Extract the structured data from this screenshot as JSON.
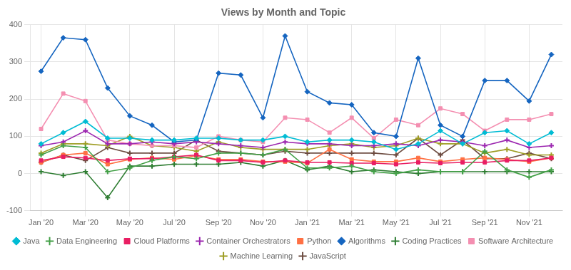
{
  "chart_data": {
    "type": "line",
    "title": "Views by Month and Topic",
    "categories": [
      "Jan '20",
      null,
      "Mar '20",
      null,
      "May '20",
      null,
      "Jul '20",
      null,
      "Sep '20",
      null,
      "Nov '20",
      null,
      "Jan '21",
      null,
      "Mar '21",
      null,
      "May '21",
      null,
      "Jul '21",
      null,
      "Sep '21",
      null,
      "Nov '21",
      null
    ],
    "ylim": [
      -100,
      400
    ],
    "yticks": [
      -100,
      0,
      100,
      200,
      300,
      400
    ],
    "grid": true,
    "legend": "bottom",
    "series": [
      {
        "name": "Java",
        "color": "#00bcd4",
        "marker": "diamond",
        "values": [
          80,
          110,
          140,
          95,
          95,
          90,
          90,
          95,
          95,
          90,
          90,
          100,
          85,
          90,
          90,
          85,
          65,
          80,
          115,
          80,
          110,
          115,
          80,
          110
        ]
      },
      {
        "name": "Data Engineering",
        "color": "#43a047",
        "marker": "plus",
        "values": [
          50,
          75,
          70,
          5,
          15,
          35,
          45,
          40,
          55,
          55,
          50,
          65,
          15,
          15,
          20,
          5,
          0,
          10,
          5,
          5,
          60,
          10,
          -10,
          10
        ]
      },
      {
        "name": "Cloud Platforms",
        "color": "#e91e63",
        "marker": "square",
        "values": [
          35,
          45,
          42,
          35,
          40,
          40,
          45,
          50,
          35,
          35,
          30,
          35,
          30,
          30,
          28,
          28,
          25,
          30,
          28,
          30,
          30,
          35,
          35,
          42
        ]
      },
      {
        "name": "Container Orchestrators",
        "color": "#9c27b0",
        "marker": "plus",
        "values": [
          75,
          85,
          115,
          80,
          80,
          85,
          80,
          85,
          80,
          75,
          70,
          85,
          80,
          80,
          75,
          75,
          80,
          75,
          90,
          85,
          75,
          90,
          70,
          75
        ]
      },
      {
        "name": "Python",
        "color": "#ff7043",
        "marker": "square",
        "values": [
          30,
          50,
          55,
          25,
          38,
          42,
          38,
          48,
          38,
          38,
          32,
          32,
          28,
          65,
          38,
          32,
          32,
          42,
          32,
          38,
          42,
          38,
          32,
          42
        ]
      },
      {
        "name": "Algorithms",
        "color": "#1565c0",
        "marker": "diamond",
        "values": [
          275,
          365,
          360,
          230,
          155,
          130,
          85,
          90,
          270,
          265,
          150,
          370,
          220,
          190,
          185,
          110,
          100,
          310,
          130,
          100,
          250,
          250,
          195,
          320
        ]
      },
      {
        "name": "Coding Practices",
        "color": "#2e7d32",
        "marker": "plus",
        "values": [
          5,
          -5,
          5,
          -65,
          20,
          20,
          25,
          25,
          25,
          30,
          20,
          35,
          10,
          20,
          5,
          10,
          5,
          0,
          5,
          5,
          5,
          5,
          5,
          5
        ]
      },
      {
        "name": "Software Architecture",
        "color": "#f48fb1",
        "marker": "square",
        "values": [
          120,
          215,
          195,
          90,
          80,
          75,
          75,
          70,
          100,
          90,
          85,
          150,
          145,
          110,
          150,
          95,
          145,
          130,
          175,
          160,
          115,
          145,
          145,
          160
        ]
      },
      {
        "name": "Machine Learning",
        "color": "#9e9d24",
        "marker": "plus",
        "values": [
          55,
          80,
          80,
          75,
          100,
          75,
          70,
          60,
          85,
          70,
          65,
          65,
          65,
          75,
          80,
          70,
          75,
          95,
          80,
          80,
          55,
          65,
          50,
          50
        ]
      },
      {
        "name": "JavaScript",
        "color": "#6d4c41",
        "marker": "plus",
        "values": [
          30,
          50,
          35,
          70,
          55,
          55,
          55,
          90,
          60,
          55,
          50,
          60,
          55,
          55,
          55,
          55,
          50,
          95,
          50,
          90,
          40,
          40,
          55,
          40
        ]
      }
    ]
  }
}
